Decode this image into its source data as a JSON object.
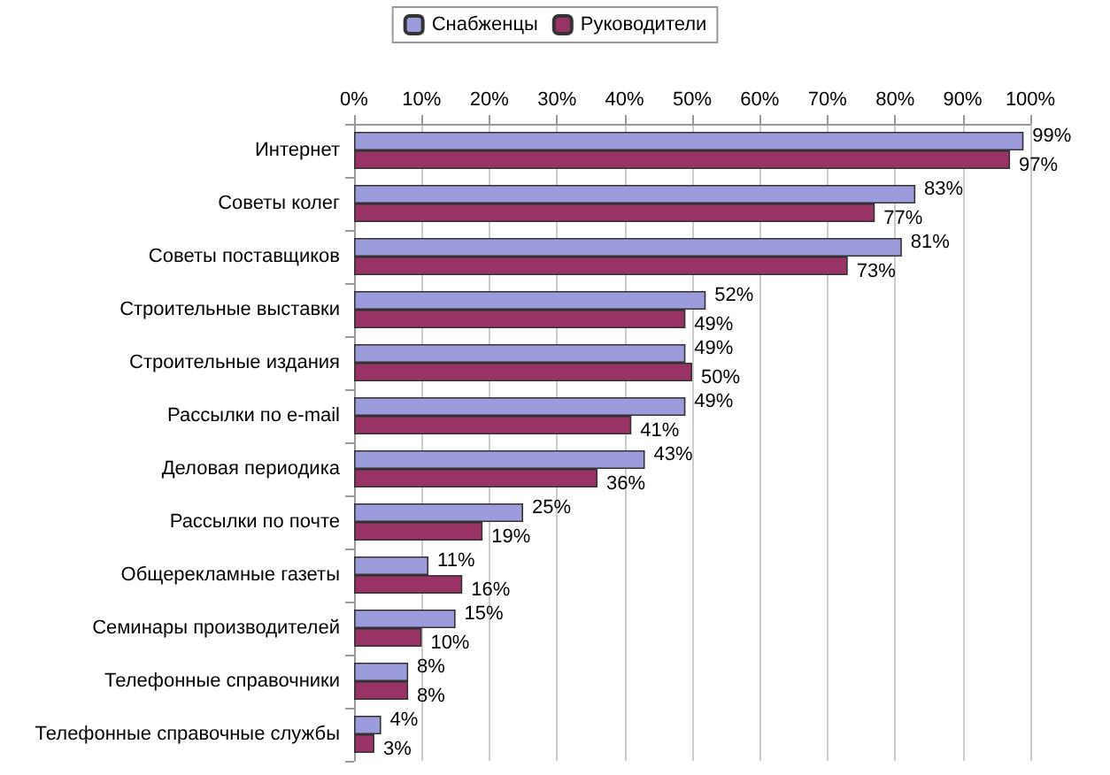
{
  "chart_data": {
    "type": "bar",
    "orientation": "horizontal",
    "categories": [
      "Интернет",
      "Советы колег",
      "Советы поставщиков",
      "Строительные выставки",
      "Строительные издания",
      "Рассылки по e-mail",
      "Деловая периодика",
      "Рассылки по почте",
      "Общерекламные газеты",
      "Семинары производителей",
      "Телефонные справочники",
      "Телефонные справочные службы"
    ],
    "series": [
      {
        "name": "Снабженцы",
        "color": "#9c9cdc",
        "values": [
          99,
          83,
          81,
          52,
          49,
          49,
          43,
          25,
          11,
          15,
          8,
          4
        ],
        "value_labels": [
          "99%",
          "83%",
          "81%",
          "52%",
          "49%",
          "49%",
          "43%",
          "25%",
          "11%",
          "15%",
          "8%",
          "4%"
        ]
      },
      {
        "name": "Руководители",
        "color": "#993366",
        "values": [
          97,
          77,
          73,
          49,
          50,
          41,
          36,
          19,
          16,
          10,
          8,
          3
        ],
        "value_labels": [
          "97%",
          "77%",
          "73%",
          "49%",
          "50%",
          "41%",
          "36%",
          "19%",
          "16%",
          "10%",
          "8%",
          "3%"
        ]
      }
    ],
    "xlim": [
      0,
      100
    ],
    "xticks": [
      {
        "value": 0,
        "label": "0%"
      },
      {
        "value": 10,
        "label": "10%"
      },
      {
        "value": 20,
        "label": "20%"
      },
      {
        "value": 30,
        "label": "30%"
      },
      {
        "value": 40,
        "label": "40%"
      },
      {
        "value": 50,
        "label": "50%"
      },
      {
        "value": 60,
        "label": "60%"
      },
      {
        "value": 70,
        "label": "70%"
      },
      {
        "value": 80,
        "label": "80%"
      },
      {
        "value": 90,
        "label": "90%"
      },
      {
        "value": 100,
        "label": "100%"
      }
    ],
    "grid": "x",
    "legend": "top"
  }
}
